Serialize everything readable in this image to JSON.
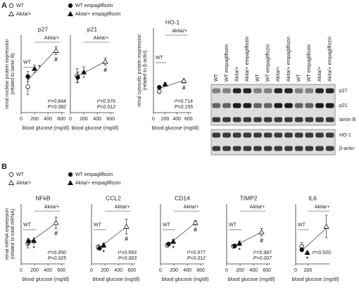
{
  "panels": [
    "A",
    "B"
  ],
  "legend_a": [
    "WT",
    "Akita/+",
    "WT empagliflozin",
    "Akita/+ empagliflozin"
  ],
  "legend_b": [
    "WT",
    "Akita/+",
    "WT empagliflozin",
    "Akita/+ empagliflozin"
  ],
  "blot": {
    "lanes": [
      "WT",
      "WT empagliflozin",
      "Akita/+",
      "Akita/+ empagliflozin",
      "WT",
      "WT empagliflozin",
      "Akita/+",
      "Akita/+ empagliflozin",
      "WT",
      "WT empagliflozin",
      "Akita/+",
      "Akita/+ empagliflozin"
    ],
    "bands": [
      "p27",
      "p21",
      "lamin B",
      "HO-1",
      "β-actin"
    ]
  },
  "chart_data": [
    {
      "type": "scatter",
      "title": "p27",
      "ylabel": [
        "renal nuclear protein expression",
        "(related to lamin B)"
      ],
      "xlabel": "blood glucose (mg/dl)",
      "x": [
        100,
        520,
        100,
        200
      ],
      "values": [
        1.0,
        2.4,
        1.4,
        1.7
      ],
      "errors": [
        0.3,
        0.15,
        0.2,
        0.15
      ],
      "xlim": [
        0,
        650
      ],
      "xticks": [
        0,
        200,
        400,
        600
      ],
      "ylim": [
        0,
        3
      ],
      "wt_label": "WT",
      "akita_label": "Akita/+",
      "star": "*",
      "hash": "#",
      "stats": [
        "r²=0.844",
        "P=0.082"
      ]
    },
    {
      "type": "scatter",
      "title": "p21",
      "xlabel": "blood glucose (mg/dl)",
      "x": [
        100,
        520,
        110,
        200
      ],
      "values": [
        1.05,
        1.45,
        1.0,
        1.15
      ],
      "errors": [
        0.2,
        0.1,
        0.15,
        0.15
      ],
      "xlim": [
        0,
        650
      ],
      "xticks": [
        0,
        200,
        400,
        600
      ],
      "ylim": [
        0,
        2.2
      ],
      "akita_label": "Akita/+",
      "hash": "#",
      "stats": [
        "r²=0.976",
        "P=0.012"
      ]
    },
    {
      "type": "scatter",
      "title": "HO-1",
      "ylabel": [
        "renal cytosolic protein expression",
        "(related to β-actin)"
      ],
      "xlabel": "blood glucose (mg/dl)",
      "x": [
        100,
        520,
        100,
        200
      ],
      "values": [
        1.0,
        1.25,
        1.1,
        1.17
      ],
      "errors": [
        0.05,
        0.05,
        0.04,
        0.04
      ],
      "xlim": [
        0,
        650
      ],
      "xticks": [
        0,
        200,
        400,
        600
      ],
      "ylim": [
        0.5,
        2.5
      ],
      "wt_label": "WT",
      "akita_label": "Akita/+",
      "hash": "#",
      "stats": [
        "r²=0.714",
        "P=0.155"
      ]
    },
    {
      "type": "scatter",
      "title": "NFkB",
      "ylabel": [
        "renal mRNA expression",
        "(related to total mRNA)"
      ],
      "xlabel": "blood glucose (mg/dl)",
      "x": [
        100,
        520,
        110,
        190
      ],
      "values": [
        1.05,
        1.6,
        1.1,
        1.12
      ],
      "errors": [
        0.12,
        0.15,
        0.08,
        0.08
      ],
      "xlim": [
        0,
        650
      ],
      "xticks": [
        0,
        200,
        400,
        600
      ],
      "ylim": [
        0.5,
        2.1
      ],
      "wt_label": "WT",
      "akita_label": "Akita/+",
      "star": "*",
      "hash": "#",
      "stats": [
        "r²=0.950",
        "P=0.025"
      ]
    },
    {
      "type": "scatter",
      "title": "CCL2",
      "xlabel": "blood glucose (mg/dl)",
      "x": [
        100,
        520,
        120,
        180
      ],
      "values": [
        0.95,
        1.5,
        0.92,
        1.0
      ],
      "errors": [
        0.06,
        0.2,
        0.05,
        0.06
      ],
      "xlim": [
        0,
        650
      ],
      "xticks": [
        0,
        200,
        400,
        600
      ],
      "ylim": [
        0.5,
        2.1
      ],
      "wt_label": "WT",
      "akita_label": "Akita/+",
      "star": "*",
      "hash": "#",
      "stats": [
        "r²=0.993",
        "P=0.003"
      ]
    },
    {
      "type": "scatter",
      "title": "CD14",
      "xlabel": "blood glucose (mg/dl)",
      "x": [
        100,
        520,
        120,
        190
      ],
      "values": [
        1.0,
        1.6,
        1.03,
        1.1
      ],
      "errors": [
        0.05,
        0.06,
        0.05,
        0.06
      ],
      "xlim": [
        0,
        650
      ],
      "xticks": [
        0,
        200,
        400,
        600
      ],
      "ylim": [
        0.5,
        2.1
      ],
      "wt_label": "WT",
      "akita_label": "Akita/+",
      "star": "*",
      "hash": "#",
      "stats": [
        "r²=0.977",
        "P=0.012"
      ]
    },
    {
      "type": "scatter",
      "title": "TIMP2",
      "xlabel": "blood glucose (mg/dl)",
      "x": [
        100,
        520,
        120,
        190
      ],
      "values": [
        0.97,
        1.35,
        0.98,
        1.05
      ],
      "errors": [
        0.05,
        0.1,
        0.05,
        0.06
      ],
      "xlim": [
        0,
        650
      ],
      "xticks": [
        0,
        200,
        400,
        600
      ],
      "ylim": [
        0.5,
        2.1
      ],
      "wt_label": "WT",
      "akita_label": "Akita/+",
      "star": "*",
      "hash": "#",
      "stats": [
        "r²=0.987",
        "P=0.007"
      ]
    },
    {
      "type": "scatter",
      "title": "IL6",
      "xlabel": "blood glucose (mg/dl)",
      "x": [
        100,
        500,
        100,
        190
      ],
      "values": [
        0.97,
        1.5,
        0.88,
        0.8
      ],
      "errors": [
        0.1,
        0.3,
        0.05,
        0.04
      ],
      "xlim": [
        0,
        550
      ],
      "xticks": [
        0,
        200
      ],
      "ylim": [
        0.5,
        2.1
      ],
      "wt_label": "WT",
      "akita_label": "Akita/+",
      "star": "*",
      "stats": [
        "r²=0.920"
      ]
    }
  ]
}
